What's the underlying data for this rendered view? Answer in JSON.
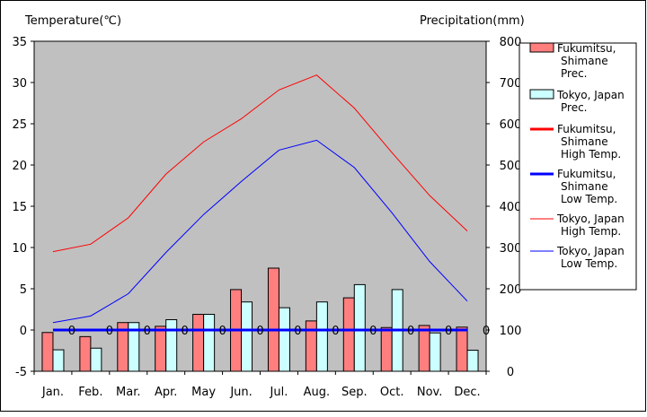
{
  "chart_data": {
    "type": "bar+line",
    "y_left_label": "Temperature(℃)",
    "y_right_label": "Precipitation(mm)",
    "y_left_range": [
      -5,
      35
    ],
    "y_left_ticks": [
      "35",
      "30",
      "25",
      "20",
      "15",
      "10",
      "5",
      "0",
      "-5"
    ],
    "y_right_range": [
      0,
      800
    ],
    "y_right_ticks": [
      "800",
      "700",
      "600",
      "500",
      "400",
      "300",
      "200",
      "100",
      "0"
    ],
    "categories": [
      "Jan.",
      "Feb.",
      "Mar.",
      "Apr.",
      "May",
      "Jun.",
      "Jul.",
      "Aug.",
      "Sep.",
      "Oct.",
      "Nov.",
      "Dec."
    ],
    "grid": false,
    "legend_position": "right",
    "bar_series": [
      {
        "name": "Fukumitsu, Shimane Prec.",
        "legend_lines": [
          "Fukumitsu,",
          "Shimane",
          "Prec."
        ],
        "color": "#ff7f7f",
        "values": [
          94,
          84,
          118,
          109,
          138,
          198,
          250,
          122,
          178,
          106,
          111,
          107
        ]
      },
      {
        "name": "Tokyo, Japan Prec.",
        "legend_lines": [
          "Tokyo, Japan",
          "Prec."
        ],
        "color": "#ccffff",
        "values": [
          52,
          56,
          118,
          125,
          138,
          168,
          154,
          168,
          210,
          198,
          93,
          51
        ]
      }
    ],
    "line_series": [
      {
        "name": "Fukumitsu, Shimane High Temp.",
        "legend_lines": [
          "Fukumitsu,",
          "Shimane",
          "High Temp."
        ],
        "color": "#ff0000",
        "width": 3,
        "values": [
          0,
          0,
          0,
          0,
          0,
          0,
          0,
          0,
          0,
          0,
          0,
          0
        ]
      },
      {
        "name": "Fukumitsu, Shimane Low Temp.",
        "legend_lines": [
          "Fukumitsu,",
          "Shimane",
          "Low Temp."
        ],
        "color": "#0000ff",
        "width": 3,
        "values": [
          0,
          0,
          0,
          0,
          0,
          0,
          0,
          0,
          0,
          0,
          0,
          0
        ]
      },
      {
        "name": "Tokyo, Japan High Temp.",
        "legend_lines": [
          "Tokyo, Japan",
          "High Temp."
        ],
        "color": "#ff0000",
        "width": 1,
        "values": [
          9.5,
          10.4,
          13.6,
          18.9,
          22.8,
          25.6,
          29.1,
          30.9,
          26.9,
          21.5,
          16.3,
          12.0
        ]
      },
      {
        "name": "Tokyo, Japan Low Temp.",
        "legend_lines": [
          "Tokyo, Japan",
          "Low Temp."
        ],
        "color": "#0000ff",
        "width": 1,
        "values": [
          0.9,
          1.7,
          4.4,
          9.4,
          14.0,
          18.0,
          21.8,
          23.0,
          19.7,
          14.2,
          8.3,
          3.5
        ]
      }
    ],
    "point_labels": [
      "0",
      "0",
      "0",
      "0",
      "0",
      "0",
      "0",
      "0",
      "0",
      "0",
      "0",
      "0"
    ]
  }
}
